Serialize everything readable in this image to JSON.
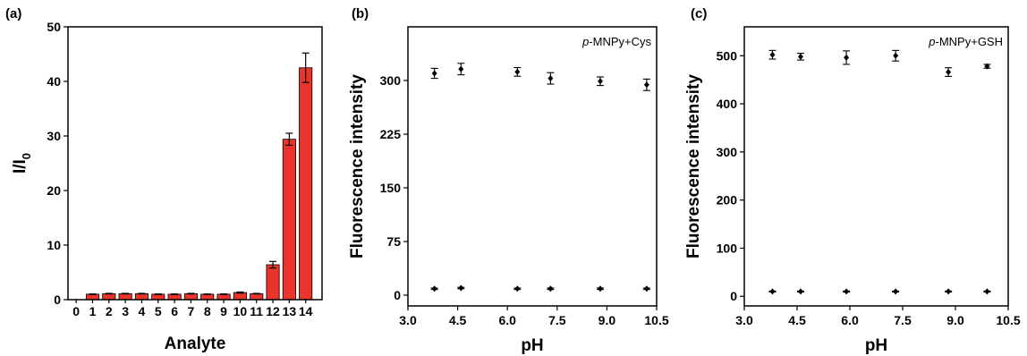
{
  "chart_data": [
    {
      "type": "bar",
      "panel": "(a)",
      "xlabel": "Analyte",
      "ylabel_main": "I/I",
      "ylabel_sub": "0",
      "ylim": [
        0,
        50
      ],
      "yticks": [
        0,
        10,
        20,
        30,
        40,
        50
      ],
      "xtick_labels": [
        "0",
        "1",
        "2",
        "3",
        "4",
        "5",
        "6",
        "7",
        "8",
        "9",
        "10",
        "11",
        "12",
        "13",
        "14"
      ],
      "categories": [
        "1",
        "2",
        "3",
        "4",
        "5",
        "6",
        "7",
        "8",
        "9",
        "10",
        "11",
        "12",
        "13",
        "14"
      ],
      "values": [
        1.0,
        1.1,
        1.1,
        1.1,
        1.0,
        1.0,
        1.1,
        1.0,
        1.0,
        1.3,
        1.1,
        6.4,
        29.4,
        42.5
      ],
      "errors": [
        0.05,
        0.05,
        0.05,
        0.05,
        0.05,
        0.05,
        0.05,
        0.05,
        0.05,
        0.1,
        0.05,
        0.6,
        1.1,
        2.7
      ],
      "bar_color": "#e8342b"
    },
    {
      "type": "scatter",
      "panel": "(b)",
      "annotation_italic": "p",
      "annotation_rest": "-MNPy+Cys",
      "xlabel": "pH",
      "ylabel": "Fluorescence intensity",
      "xlim": [
        3.0,
        10.5
      ],
      "ylim": [
        -15,
        375
      ],
      "xticks": [
        "3.0",
        "4.5",
        "6.0",
        "7.5",
        "9.0",
        "10.5"
      ],
      "yticks": [
        "0",
        "75",
        "150",
        "225",
        "300"
      ],
      "series": [
        {
          "x": [
            3.8,
            4.6,
            6.3,
            7.3,
            8.8,
            10.2
          ],
          "y": [
            310,
            316,
            312,
            303,
            299,
            294
          ],
          "err": [
            7,
            8,
            6,
            8,
            6,
            8
          ]
        },
        {
          "x": [
            3.8,
            4.6,
            6.3,
            7.3,
            8.8,
            10.2
          ],
          "y": [
            9,
            10,
            9,
            9,
            9,
            9
          ],
          "err": [
            1,
            1,
            1,
            1,
            1,
            1
          ]
        }
      ],
      "marker_color": "#000000"
    },
    {
      "type": "scatter",
      "panel": "(c)",
      "annotation_italic": "p",
      "annotation_rest": "-MNPy+GSH",
      "xlabel": "pH",
      "ylabel": "Fluorescence intensity",
      "xlim": [
        3.0,
        10.5
      ],
      "ylim": [
        -20,
        560
      ],
      "xticks": [
        "3.0",
        "4.5",
        "6.0",
        "7.5",
        "9.0",
        "10.5"
      ],
      "yticks": [
        "0",
        "100",
        "200",
        "300",
        "400",
        "500"
      ],
      "series": [
        {
          "x": [
            3.8,
            4.6,
            5.9,
            7.3,
            8.8,
            9.9
          ],
          "y": [
            502,
            498,
            496,
            500,
            466,
            478
          ],
          "err": [
            9,
            7,
            14,
            11,
            9,
            4
          ]
        },
        {
          "x": [
            3.8,
            4.6,
            5.9,
            7.3,
            8.8,
            9.9
          ],
          "y": [
            10,
            10,
            10,
            10,
            10,
            10
          ],
          "err": [
            1,
            1,
            1,
            1,
            1,
            1
          ]
        }
      ],
      "marker_color": "#000000"
    }
  ]
}
